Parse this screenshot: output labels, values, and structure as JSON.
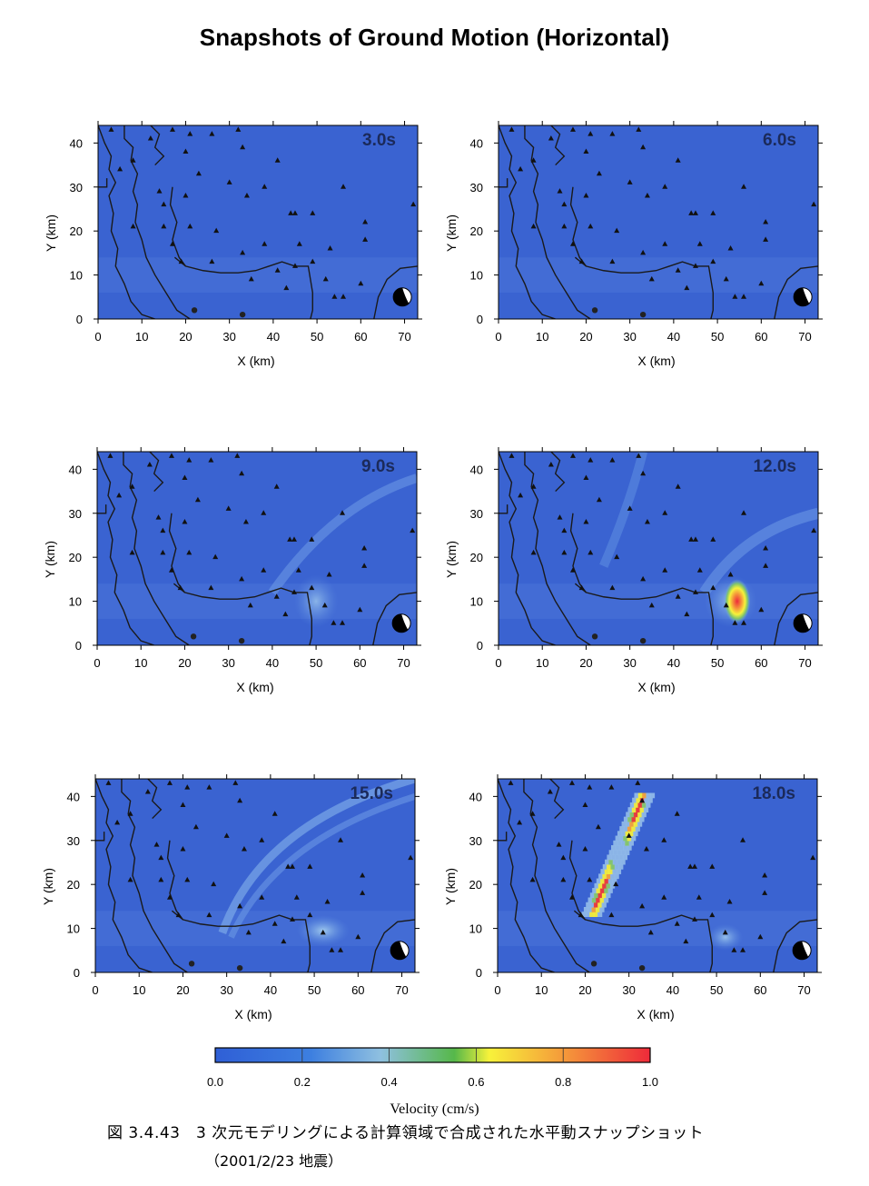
{
  "page": {
    "title": "Snapshots of Ground Motion (Horizontal)",
    "caption_line1": "図 3.4.43　3 次元モデリングによる計算領域で合成された水平動スナップショット",
    "caption_line2": "（2001/2/23 地震）"
  },
  "chart_data": {
    "type": "heatmap",
    "title": "Snapshots of Ground Motion (Horizontal)",
    "xlabel": "X (km)",
    "ylabel": "Y (km)",
    "xlim": [
      0,
      73
    ],
    "ylim": [
      0,
      44
    ],
    "xticks": [
      0,
      10,
      20,
      30,
      40,
      50,
      60,
      70
    ],
    "yticks": [
      0,
      10,
      20,
      30,
      40
    ],
    "colorbar": {
      "title": "Velocity (cm/s)",
      "range": [
        0.0,
        1.0
      ],
      "ticks": [
        "0.0",
        "0.2",
        "0.4",
        "0.6",
        "0.8",
        "1.0"
      ],
      "colors": [
        "#2f5fd6",
        "#3d7fe0",
        "#8fc0e0",
        "#56b84a",
        "#f7f23a",
        "#f59a3a",
        "#ee2a3a"
      ]
    },
    "background_color": "#3a63d1",
    "panels": [
      {
        "time": "3.0s",
        "peak_region": null
      },
      {
        "time": "6.0s",
        "peak_region": null
      },
      {
        "time": "9.0s",
        "peak_region": "faint wavefront near X 45-55, Y 5-15"
      },
      {
        "time": "12.0s",
        "peak_region": "X 52-57, Y 5-14, max ~1.0 cm/s"
      },
      {
        "time": "15.0s",
        "peak_region": "X 48-56, Y 7-12, arc wavefront ~0.3 cm/s"
      },
      {
        "time": "18.0s",
        "peak_region": "band from X 21, Y 13 to X 33, Y 40, max ~0.9 cm/s"
      }
    ],
    "stations": [
      [
        3,
        43
      ],
      [
        17,
        43
      ],
      [
        21,
        42
      ],
      [
        26,
        42
      ],
      [
        32,
        43
      ],
      [
        12,
        41
      ],
      [
        20,
        38
      ],
      [
        8,
        36
      ],
      [
        33,
        39
      ],
      [
        41,
        36
      ],
      [
        5,
        34
      ],
      [
        23,
        33
      ],
      [
        30,
        31
      ],
      [
        38,
        30
      ],
      [
        56,
        30
      ],
      [
        14,
        29
      ],
      [
        20,
        28
      ],
      [
        34,
        28
      ],
      [
        44,
        24
      ],
      [
        45,
        24
      ],
      [
        49,
        24
      ],
      [
        15,
        26
      ],
      [
        61,
        22
      ],
      [
        8,
        21
      ],
      [
        15,
        21
      ],
      [
        21,
        21
      ],
      [
        27,
        20
      ],
      [
        53,
        16
      ],
      [
        61,
        18
      ],
      [
        38,
        17
      ],
      [
        17,
        17
      ],
      [
        46,
        17
      ],
      [
        33,
        15
      ],
      [
        41,
        11
      ],
      [
        45,
        12
      ],
      [
        49,
        13
      ],
      [
        26,
        13
      ],
      [
        52,
        9
      ],
      [
        60,
        8
      ],
      [
        69,
        6
      ],
      [
        19,
        13
      ],
      [
        43,
        7
      ],
      [
        35,
        9
      ],
      [
        54,
        5
      ],
      [
        56,
        5
      ],
      [
        72,
        26
      ]
    ]
  }
}
